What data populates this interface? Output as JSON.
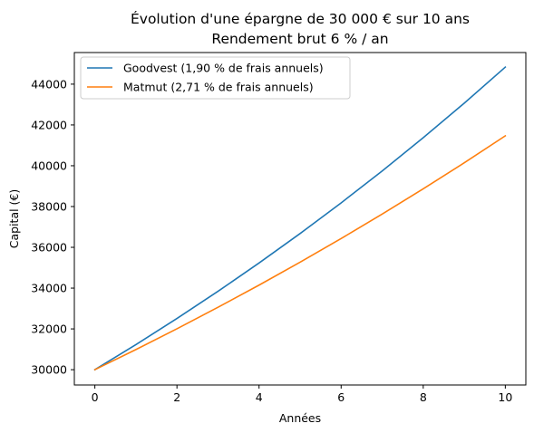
{
  "chart_data": {
    "type": "line",
    "title": "Évolution d'une épargne de 30 000 € sur 10 ans",
    "subtitle": "Rendement brut 6 % / an",
    "xlabel": "Années",
    "ylabel": "Capital (€)",
    "xlim": [
      -0.5,
      10.5
    ],
    "ylim": [
      29250,
      45550
    ],
    "xticks": [
      0,
      2,
      4,
      6,
      8,
      10
    ],
    "yticks": [
      30000,
      32000,
      34000,
      36000,
      38000,
      40000,
      42000,
      44000
    ],
    "grid": false,
    "legend_position": "top-left",
    "x": [
      0,
      1,
      2,
      3,
      4,
      5,
      6,
      7,
      8,
      9,
      10
    ],
    "series": [
      {
        "name": "Goodvest (1,90 % de frais annuels)",
        "color": "#1f77b4",
        "values": [
          30000,
          31230,
          32510,
          33843,
          35231,
          36675,
          38179,
          39744,
          41374,
          43070,
          44836
        ]
      },
      {
        "name": "Matmut (2,71 % de frais annuels)",
        "color": "#ff7f0e",
        "values": [
          30000,
          30987,
          32007,
          33060,
          34147,
          35270,
          36431,
          37629,
          38867,
          40146,
          41467
        ]
      }
    ]
  }
}
